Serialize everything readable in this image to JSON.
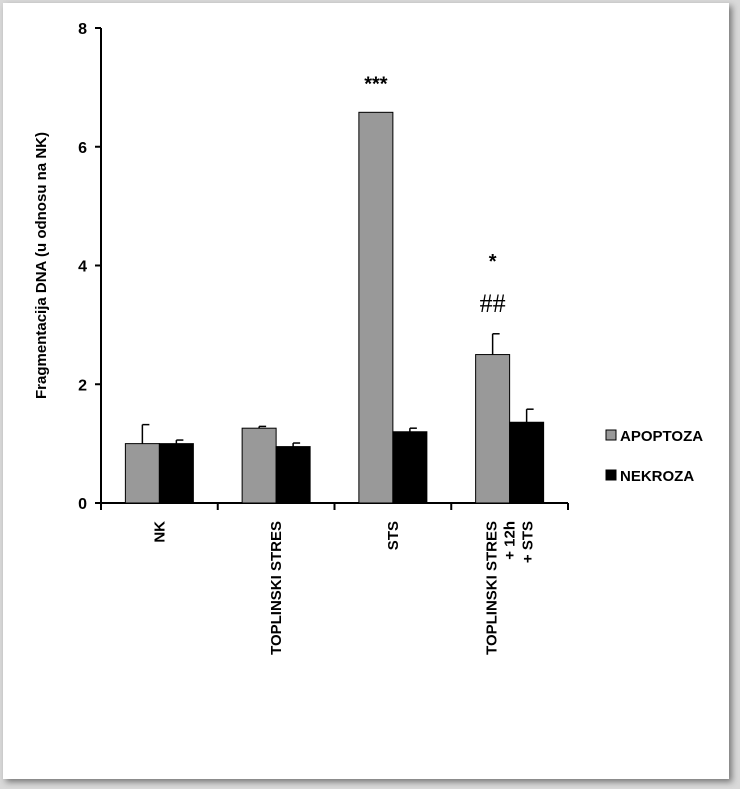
{
  "chart_data": {
    "type": "bar",
    "ylabel": "Fragmentacija DNA (u odnosu na NK)",
    "xlabel": "",
    "ylim": [
      0,
      8
    ],
    "yticks": [
      0,
      2,
      4,
      6,
      8
    ],
    "categories": [
      [
        "NK"
      ],
      [
        "TOPLINSKI STRES"
      ],
      [
        "STS"
      ],
      [
        "TOPLINSKI STRES",
        "+ 12h",
        "+ STS"
      ]
    ],
    "series": [
      {
        "name": "APOPTOZA",
        "color": "#999999",
        "values": [
          1.0,
          1.26,
          6.58,
          2.5
        ],
        "errors": [
          0.32,
          0.03,
          0.0,
          0.35
        ]
      },
      {
        "name": "NEKROZA",
        "color": "#000000",
        "values": [
          1.0,
          0.95,
          1.2,
          1.36
        ],
        "errors": [
          0.06,
          0.06,
          0.06,
          0.22
        ]
      }
    ],
    "annotations": [
      {
        "category": 2,
        "series": 0,
        "lines": [
          "***"
        ]
      },
      {
        "category": 3,
        "series": 0,
        "lines": [
          "*",
          "##"
        ]
      }
    ],
    "legend": {
      "position": "right"
    },
    "grid": false
  }
}
